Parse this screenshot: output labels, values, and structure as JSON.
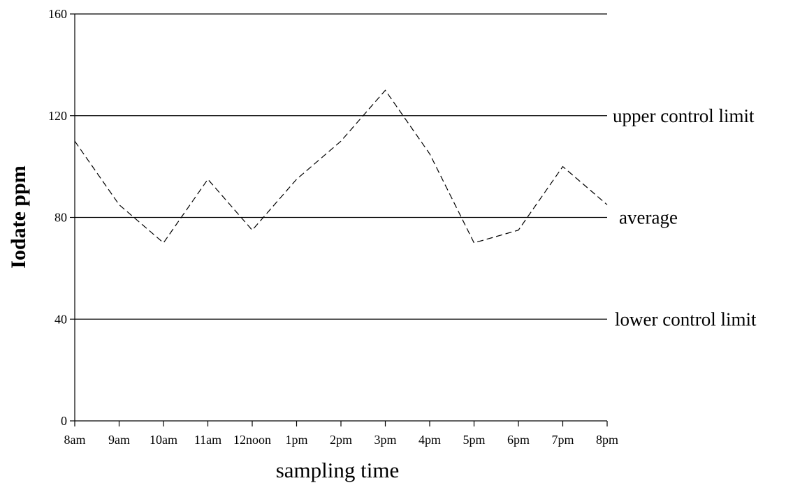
{
  "chart_data": {
    "type": "line",
    "xlabel": "sampling time",
    "ylabel": "Iodate ppm",
    "ylim": [
      0,
      160
    ],
    "yticks": [
      0,
      40,
      80,
      120,
      160
    ],
    "categories": [
      "8am",
      "9am",
      "10am",
      "11am",
      "12noon",
      "1pm",
      "2pm",
      "3pm",
      "4pm",
      "5pm",
      "6pm",
      "7pm",
      "8pm"
    ],
    "series": [
      {
        "values": [
          110,
          85,
          70,
          95,
          75,
          95,
          110,
          130,
          105,
          70,
          75,
          100,
          85
        ],
        "line_style": "dashed",
        "color": "#000000"
      }
    ],
    "reference_lines": [
      {
        "label": "upper control limit",
        "value": 120
      },
      {
        "label": "average",
        "value": 80
      },
      {
        "label": "lower control limit",
        "value": 40
      }
    ],
    "grid": false
  }
}
